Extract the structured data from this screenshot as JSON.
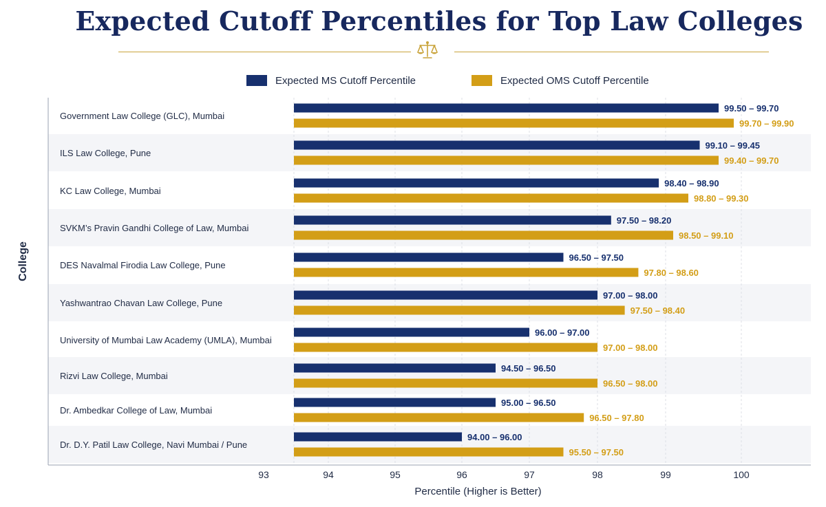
{
  "header": {
    "title": "Expected Cutoff Percentiles for Top Law Colleges"
  },
  "colors": {
    "ms": "#17306e",
    "oms": "#d39e17",
    "title": "#17285e",
    "divider": "#c9a33a",
    "band": "#f4f5f8"
  },
  "icons": {
    "divider_icon": "balance-scale-icon"
  },
  "chart_data": {
    "type": "bar",
    "orientation": "horizontal",
    "title": "Expected Cutoff Percentiles for Top Law Colleges",
    "xlabel": "Percentile (Higher is Better)",
    "ylabel": "College",
    "xlim": [
      93,
      100
    ],
    "xticks": [
      "93",
      "94",
      "95",
      "96",
      "97",
      "98",
      "99",
      "100"
    ],
    "grid": "vertical dashed",
    "legend_placement": "top",
    "categories": [
      "Government Law College (GLC), Mumbai",
      "ILS Law College, Pune",
      "KC Law College, Mumbai",
      "SVKM’s Pravin Gandhi College of Law, Mumbai",
      "DES Navalmal Firodia Law College, Pune",
      "Yashwantrao Chavan Law College, Pune",
      "University of Mumbai Law Academy (UMLA), Mumbai",
      "Rizvi Law College, Mumbai",
      "Dr. Ambedkar College of Law, Mumbai",
      "Dr. D.Y. Patil Law College, Navi Mumbai / Pune"
    ],
    "series": [
      {
        "name": "Expected MS Cutoff Percentile",
        "values": [
          99.7,
          99.45,
          98.9,
          98.2,
          97.5,
          98.0,
          97.0,
          96.5,
          96.5,
          96.0
        ],
        "ranges": [
          [
            99.5,
            99.7
          ],
          [
            99.1,
            99.45
          ],
          [
            98.4,
            98.9
          ],
          [
            97.5,
            98.2
          ],
          [
            96.5,
            97.5
          ],
          [
            97.0,
            98.0
          ],
          [
            96.0,
            97.0
          ],
          [
            94.5,
            96.5
          ],
          [
            95.0,
            96.5
          ],
          [
            94.0,
            96.0
          ]
        ],
        "labels": [
          "99.50 – 99.70",
          "99.10 – 99.45",
          "98.40 – 98.90",
          "97.50 – 98.20",
          "96.50 – 97.50",
          "97.00 – 98.00",
          "96.00 – 97.00",
          "94.50 – 96.50",
          "95.00 – 96.50",
          "94.00 – 96.00"
        ]
      },
      {
        "name": "Expected OMS Cutoff Percentile",
        "values": [
          99.9,
          99.7,
          99.3,
          99.1,
          98.6,
          98.4,
          98.0,
          98.0,
          97.8,
          97.5
        ],
        "ranges": [
          [
            99.7,
            99.9
          ],
          [
            99.4,
            99.7
          ],
          [
            98.8,
            99.3
          ],
          [
            98.5,
            99.1
          ],
          [
            97.8,
            98.6
          ],
          [
            97.5,
            98.4
          ],
          [
            97.0,
            98.0
          ],
          [
            96.5,
            98.0
          ],
          [
            96.5,
            97.8
          ],
          [
            95.5,
            97.5
          ]
        ],
        "labels": [
          "99.70 – 99.90",
          "99.40 – 99.70",
          "98.80 – 99.30",
          "98.50 – 99.10",
          "97.80 – 98.60",
          "97.50 – 98.40",
          "97.00 – 98.00",
          "96.50 – 98.00",
          "96.50 – 97.80",
          "95.50 – 97.50"
        ]
      }
    ]
  }
}
